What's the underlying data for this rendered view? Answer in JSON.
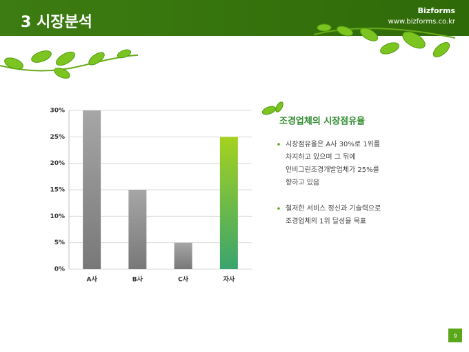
{
  "header": {
    "title": "3 시장분석",
    "brand": "Bizforms",
    "url": "www.bizforms.co.kr"
  },
  "chart_data": {
    "type": "bar",
    "categories": [
      "A사",
      "B사",
      "C사",
      "자사"
    ],
    "values": [
      30,
      15,
      5,
      25
    ],
    "colors": [
      [
        "#a6a6a6",
        "#787878"
      ],
      [
        "#a6a6a6",
        "#787878"
      ],
      [
        "#a6a6a6",
        "#787878"
      ],
      [
        "#a5d21f",
        "#3aa46e"
      ]
    ],
    "ylim": [
      0,
      30
    ],
    "yticks": [
      {
        "value": 0,
        "label": "0%"
      },
      {
        "value": 5,
        "label": "5%"
      },
      {
        "value": 10,
        "label": "10%"
      },
      {
        "value": 15,
        "label": "15%"
      },
      {
        "value": 20,
        "label": "20%"
      },
      {
        "value": 25,
        "label": "25%"
      },
      {
        "value": 30,
        "label": "30%"
      }
    ],
    "grid": true
  },
  "panel": {
    "heading": "조경업체의 시장점유율",
    "bullets": [
      [
        "시장점유율은 A사 30%로 1위를",
        "차지하고 있으며 그 뒤에",
        "인비그린조경개발업체가 25%를",
        "향하고 있음"
      ],
      [
        "철저한 서비스 정신과 기술력으로",
        "조경업체의 1위 달성을 목표"
      ]
    ]
  },
  "page_number": "9"
}
